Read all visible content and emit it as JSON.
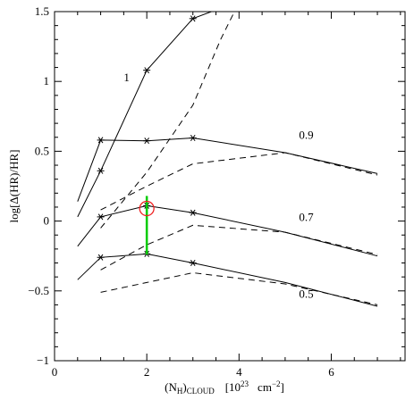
{
  "chart_data": {
    "type": "line",
    "title": "",
    "xlabel": {
      "main": "(N",
      "sub1": "H",
      "sub2": ")",
      "sub3": "CLOUD",
      "units": "[10",
      "exp1": "23",
      "units2": "cm",
      "exp2": "−2",
      "close": "]"
    },
    "ylabel": "log[Δ(HR)/HR]",
    "xlim": [
      0,
      7.6
    ],
    "ylim": [
      -1,
      1.5
    ],
    "xticks": [
      0,
      2,
      4,
      6
    ],
    "yticks": [
      -1,
      -0.5,
      0,
      0.5,
      1,
      1.5
    ],
    "xtick_labels": [
      "0",
      "2",
      "4",
      "6"
    ],
    "ytick_labels": [
      "−1",
      "−0.5",
      "0",
      "0.5",
      "1",
      "1.5"
    ],
    "grid": false,
    "series": [
      {
        "name": "1",
        "solid": [
          [
            0.5,
            0.03
          ],
          [
            1.0,
            0.36
          ],
          [
            2.0,
            1.08
          ],
          [
            3.0,
            1.45
          ],
          [
            3.4,
            1.5
          ]
        ],
        "dashed": [
          [
            1.0,
            -0.05
          ],
          [
            2.0,
            0.35
          ],
          [
            3.0,
            0.83
          ],
          [
            3.6,
            1.3
          ],
          [
            3.9,
            1.5
          ]
        ],
        "markers": [
          [
            1.0,
            0.36
          ],
          [
            2.0,
            1.08
          ],
          [
            3.0,
            1.45
          ]
        ]
      },
      {
        "name": "0.9",
        "solid": [
          [
            0.5,
            0.14
          ],
          [
            1.0,
            0.58
          ],
          [
            2.0,
            0.575
          ],
          [
            3.0,
            0.595
          ],
          [
            5.0,
            0.49
          ],
          [
            7.0,
            0.34
          ]
        ],
        "dashed": [
          [
            1.0,
            0.08
          ],
          [
            2.0,
            0.25
          ],
          [
            3.0,
            0.41
          ],
          [
            5.0,
            0.49
          ],
          [
            7.0,
            0.33
          ]
        ],
        "markers": [
          [
            1.0,
            0.58
          ],
          [
            2.0,
            0.575
          ],
          [
            3.0,
            0.595
          ]
        ]
      },
      {
        "name": "0.7",
        "solid": [
          [
            0.5,
            -0.18
          ],
          [
            1.0,
            0.03
          ],
          [
            2.0,
            0.11
          ],
          [
            3.0,
            0.06
          ],
          [
            5.0,
            -0.08
          ],
          [
            7.0,
            -0.25
          ]
        ],
        "dashed": [
          [
            1.0,
            -0.35
          ],
          [
            2.0,
            -0.17
          ],
          [
            3.0,
            -0.03
          ],
          [
            5.0,
            -0.08
          ],
          [
            7.0,
            -0.24
          ]
        ],
        "markers": [
          [
            1.0,
            0.03
          ],
          [
            2.0,
            0.11
          ],
          [
            3.0,
            0.06
          ]
        ]
      },
      {
        "name": "0.5",
        "solid": [
          [
            0.5,
            -0.42
          ],
          [
            1.0,
            -0.26
          ],
          [
            2.0,
            -0.235
          ],
          [
            3.0,
            -0.3
          ],
          [
            5.0,
            -0.44
          ],
          [
            7.0,
            -0.61
          ]
        ],
        "dashed": [
          [
            1.0,
            -0.51
          ],
          [
            2.0,
            -0.44
          ],
          [
            3.0,
            -0.37
          ],
          [
            5.0,
            -0.45
          ],
          [
            7.0,
            -0.6
          ]
        ],
        "markers": [
          [
            1.0,
            -0.26
          ],
          [
            2.0,
            -0.235
          ],
          [
            3.0,
            -0.3
          ]
        ]
      }
    ],
    "curve_labels": [
      {
        "text": "1",
        "x": 1.5,
        "y": 1.0
      },
      {
        "text": "0.9",
        "x": 5.3,
        "y": 0.59
      },
      {
        "text": "0.7",
        "x": 5.3,
        "y": 0.0
      },
      {
        "text": "0.5",
        "x": 5.3,
        "y": -0.55
      }
    ],
    "highlight": {
      "error_bar": {
        "x": 2.0,
        "y_low": -0.24,
        "y_high": 0.18,
        "color": "#00cc00"
      },
      "circle": {
        "x": 2.0,
        "y": 0.09,
        "color": "#ee2222"
      }
    }
  }
}
